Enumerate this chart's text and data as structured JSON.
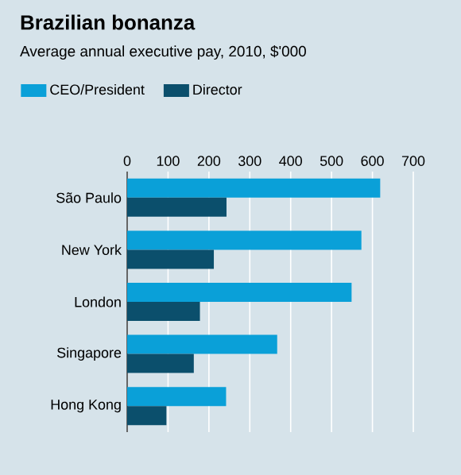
{
  "chart_data": {
    "type": "bar",
    "orientation": "horizontal",
    "title": "Brazilian bonanza",
    "subtitle": "Average annual executive pay, 2010, $'000",
    "categories": [
      "São Paulo",
      "New York",
      "London",
      "Singapore",
      "Hong Kong"
    ],
    "series": [
      {
        "name": "CEO/President",
        "color": "#0aa0d8",
        "values": [
          619,
          573,
          549,
          367,
          242
        ]
      },
      {
        "name": "Director",
        "color": "#0b4f6c",
        "values": [
          243,
          212,
          178,
          163,
          96
        ]
      }
    ],
    "xlim": [
      0,
      700
    ],
    "xticks": [
      0,
      100,
      200,
      300,
      400,
      500,
      600,
      700
    ],
    "grid": "x",
    "legend": "top left"
  }
}
